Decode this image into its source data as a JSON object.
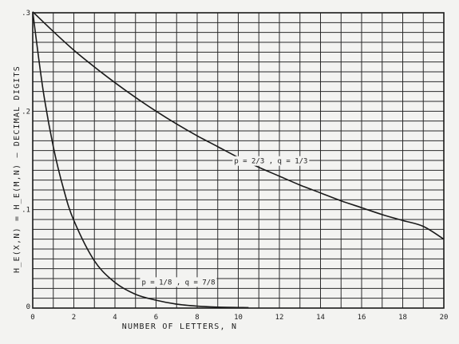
{
  "chart_data": {
    "type": "line",
    "xlabel": "NUMBER OF LETTERS, N",
    "ylabel": "H_E(X,N) = H_E(M,N) — DECIMAL DIGITS",
    "xlim": [
      0,
      20
    ],
    "ylim": [
      0,
      0.3
    ],
    "grid": true,
    "x_ticks": [
      {
        "value": 0,
        "label": "0"
      },
      {
        "value": 2,
        "label": "2"
      },
      {
        "value": 4,
        "label": "4"
      },
      {
        "value": 6,
        "label": "6"
      },
      {
        "value": 8,
        "label": "8"
      },
      {
        "value": 10,
        "label": "10"
      },
      {
        "value": 12,
        "label": "12"
      },
      {
        "value": 14,
        "label": "14"
      },
      {
        "value": 16,
        "label": "16"
      },
      {
        "value": 18,
        "label": "18"
      },
      {
        "value": 20,
        "label": "20"
      }
    ],
    "y_ticks": [
      {
        "value": 0,
        "label": "0"
      },
      {
        "value": 0.1,
        "label": ".1"
      },
      {
        "value": 0.2,
        "label": ".2"
      },
      {
        "value": 0.3,
        "label": ".3"
      }
    ],
    "series": [
      {
        "name": "p = 2/3 , q = 1/3",
        "x": [
          0,
          1,
          2,
          3,
          4,
          5,
          6,
          7,
          8,
          9,
          10,
          11,
          12,
          13,
          14,
          15,
          16,
          17,
          18,
          19,
          20
        ],
        "y": [
          0.301,
          0.281,
          0.262,
          0.245,
          0.229,
          0.214,
          0.2,
          0.187,
          0.175,
          0.164,
          0.153,
          0.143,
          0.134,
          0.125,
          0.117,
          0.109,
          0.102,
          0.095,
          0.089,
          0.083,
          0.07
        ]
      },
      {
        "name": "p = 1/8 , q = 7/8",
        "x": [
          0,
          0.5,
          1,
          1.5,
          2,
          3,
          4,
          5,
          6,
          7,
          8,
          9,
          10.5
        ],
        "y": [
          0.301,
          0.222,
          0.164,
          0.121,
          0.089,
          0.048,
          0.026,
          0.014,
          0.008,
          0.004,
          0.002,
          0.001,
          0.0005
        ]
      }
    ],
    "annotations": [
      {
        "text": "p = 2/3 , q = 1/3",
        "series": 0,
        "anchor_x": 9.8,
        "anchor_y": 0.147
      },
      {
        "text": "p = 1/8 , q = 7/8",
        "series": 1,
        "anchor_x": 5.3,
        "anchor_y": 0.024
      }
    ]
  }
}
